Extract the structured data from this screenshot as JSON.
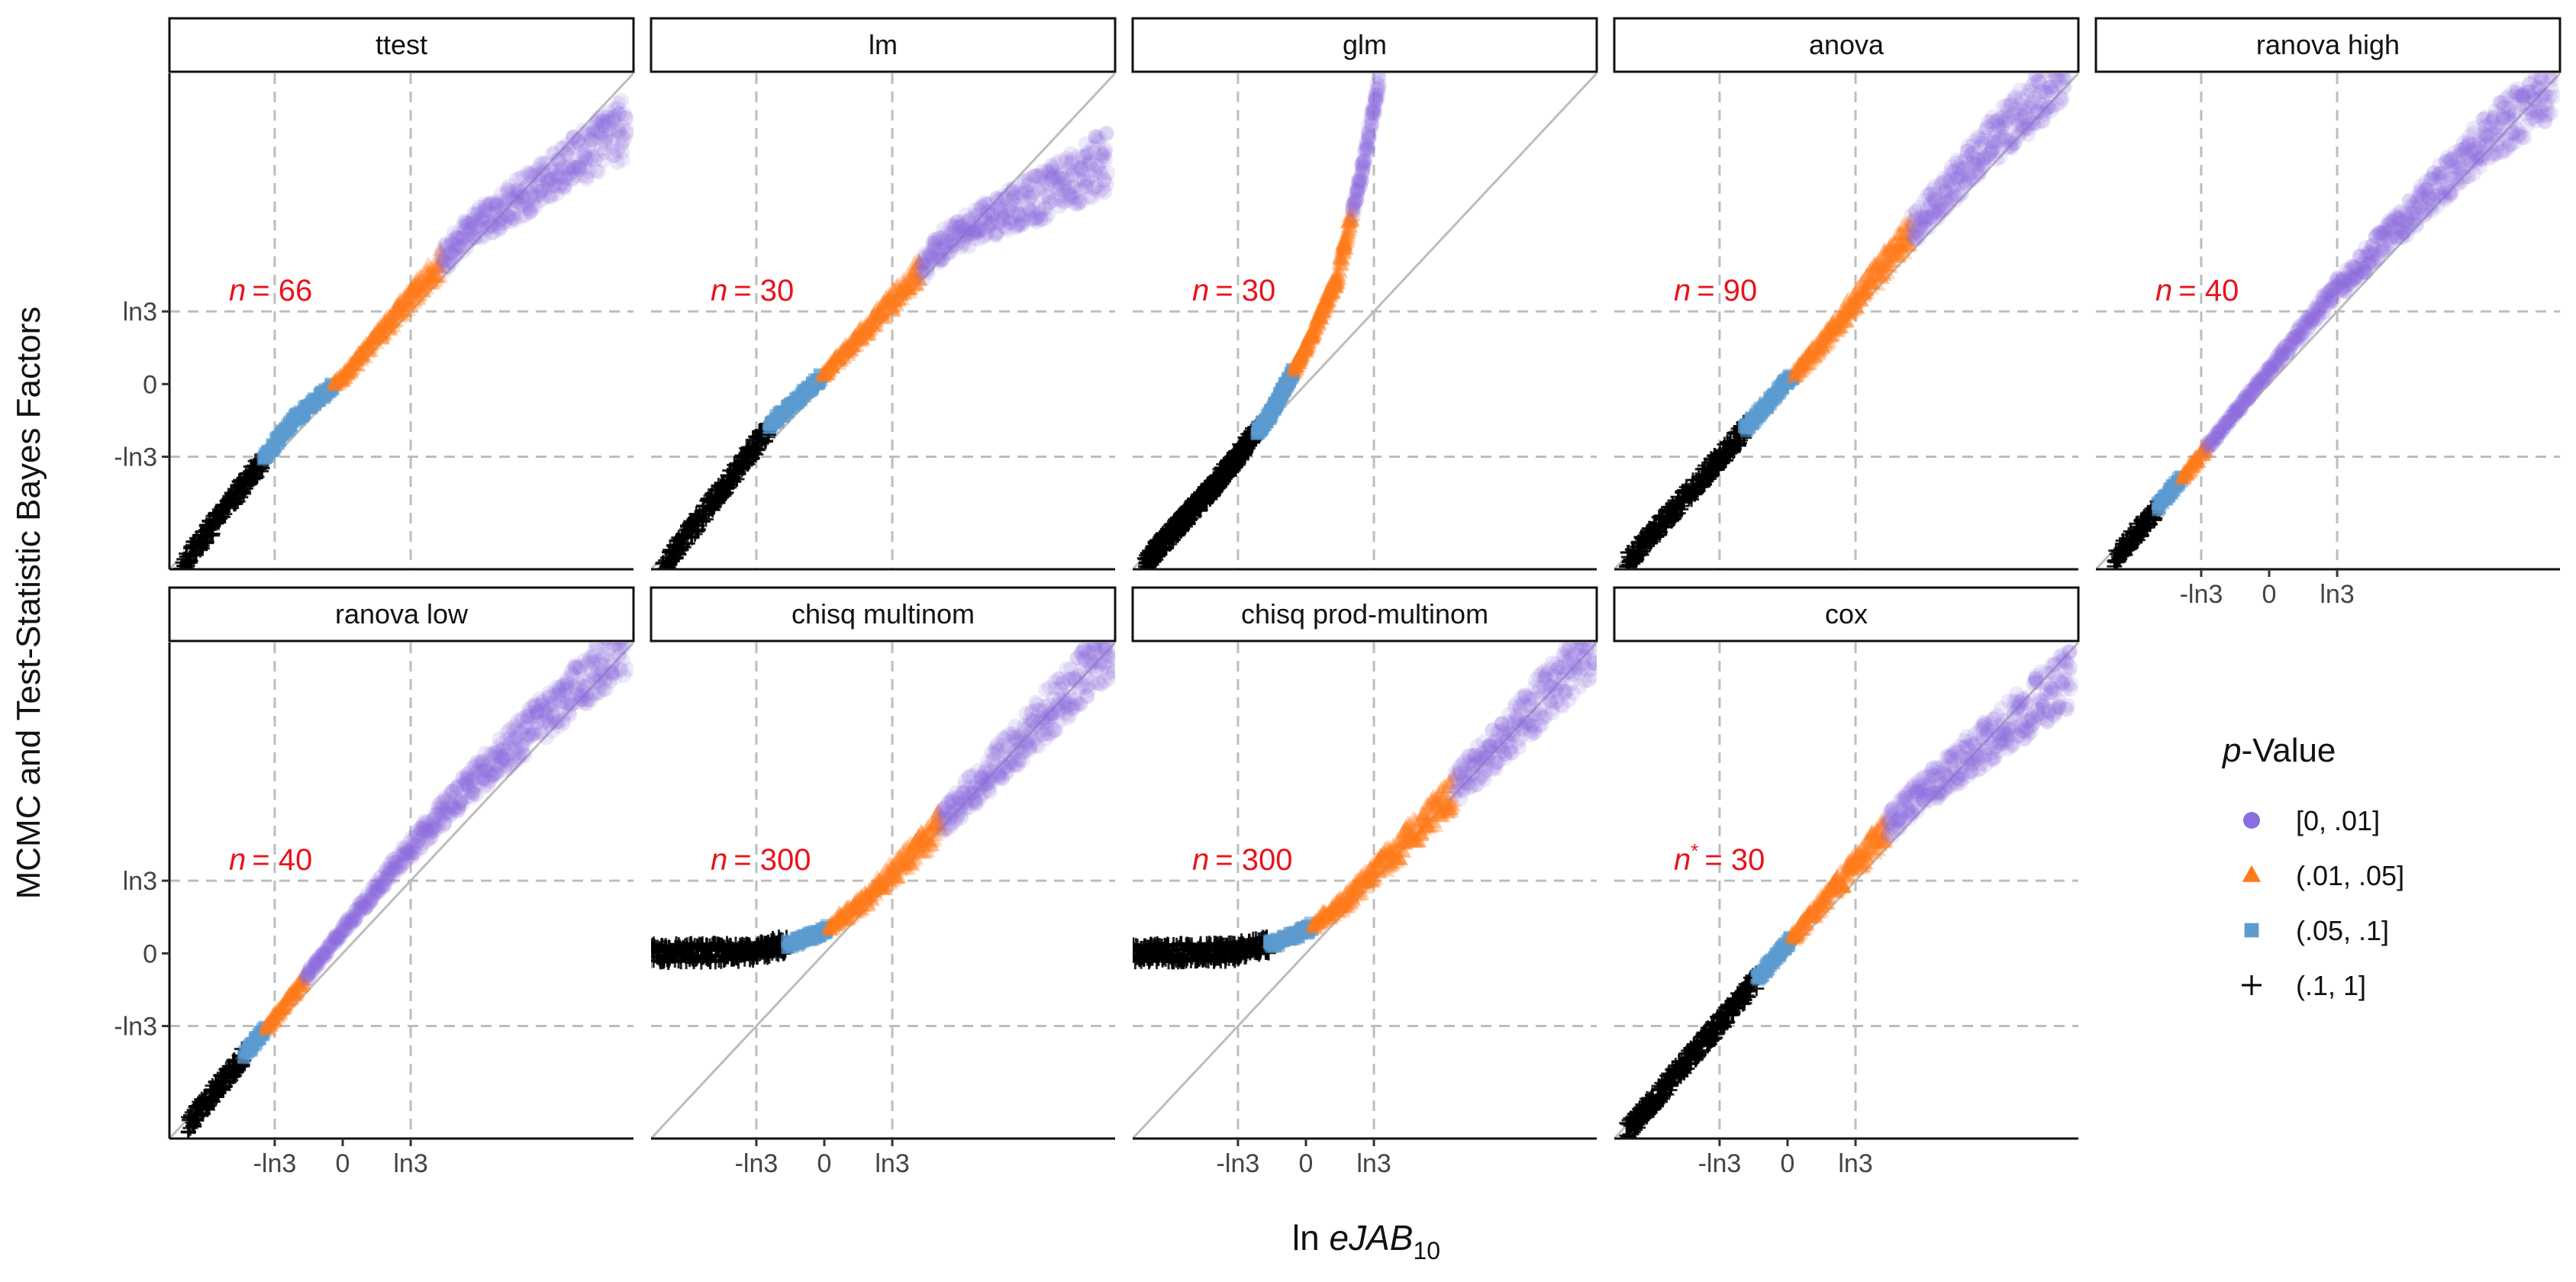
{
  "chart_data": {
    "type": "scatter",
    "xlabel_prefix": "ln ",
    "xlabel_italic": "eJAB",
    "xlabel_sub": "10",
    "ylabel": "MCMC and Test-Statistic Bayes Factors",
    "x_ticks": [
      "-ln3",
      "0",
      "ln3"
    ],
    "y_ticks": [
      "ln3",
      "0",
      "-ln3"
    ],
    "reference_lines": [
      "y = x",
      "x = -ln3",
      "x = ln3",
      "y = -ln3",
      "y = ln3"
    ],
    "axis_range": {
      "x": [
        -2.8,
        4.7
      ],
      "y": [
        -2.8,
        4.7
      ]
    },
    "legend": {
      "title_italic": "p",
      "title_rest": "-Value",
      "position": "right",
      "items": [
        {
          "label": "[0, .01]",
          "shape": "circle",
          "color": "#8a6de0"
        },
        {
          "label": "(.01, .05]",
          "shape": "triangle",
          "color": "#ff7a1a"
        },
        {
          "label": "(.05, .1]",
          "shape": "square",
          "color": "#5b9bd0"
        },
        {
          "label": "(.1, 1]",
          "shape": "plus",
          "color": "#000000"
        }
      ]
    },
    "panels": [
      {
        "title": "ttest",
        "n_label": "n",
        "n_star": "",
        "n_value": "= 66",
        "curve": [
          [
            -2.6,
            -2.75
          ],
          [
            -0.8,
            -0.55
          ],
          [
            0,
            0.1
          ],
          [
            1.0,
            1.2
          ],
          [
            2.0,
            2.3
          ],
          [
            3.5,
            3.2
          ],
          [
            4.6,
            3.9
          ]
        ],
        "breaks": [
          -1.3,
          -0.15,
          0.5,
          1.6
        ]
      },
      {
        "title": "lm",
        "n_label": "n",
        "n_star": "",
        "n_value": "= 30",
        "curve": [
          [
            -2.6,
            -2.75
          ],
          [
            -0.8,
            -0.55
          ],
          [
            0,
            0.15
          ],
          [
            1.0,
            1.15
          ],
          [
            2.0,
            2.2
          ],
          [
            3.5,
            2.85
          ],
          [
            4.6,
            3.4
          ]
        ],
        "breaks": [
          -0.9,
          -0.05,
          0.4,
          1.55
        ]
      },
      {
        "title": "glm",
        "n_label": "n",
        "n_star": "",
        "n_value": "= 30",
        "curve": [
          [
            -2.6,
            -2.7
          ],
          [
            -1.5,
            -1.55
          ],
          [
            -0.6,
            -0.5
          ],
          [
            0,
            0.55
          ],
          [
            0.5,
            1.6
          ],
          [
            0.9,
            3.2
          ],
          [
            1.2,
            4.7
          ]
        ],
        "breaks": [
          -0.8,
          -0.2,
          0.05,
          0.75
        ]
      },
      {
        "title": "anova",
        "n_label": "n",
        "n_star": "",
        "n_value": "= 90",
        "curve": [
          [
            -2.6,
            -2.7
          ],
          [
            -1.5,
            -1.55
          ],
          [
            0,
            0.05
          ],
          [
            0.5,
            0.55
          ],
          [
            1.8,
            2.1
          ],
          [
            3.2,
            3.6
          ],
          [
            4.5,
            4.7
          ]
        ],
        "breaks": [
          -0.7,
          0.1,
          0.75,
          2.0
        ]
      },
      {
        "title": "ranova high",
        "n_label": "n",
        "n_star": "",
        "n_value": "= 40",
        "curve": [
          [
            -2.5,
            -2.65
          ],
          [
            -1.0,
            -0.95
          ],
          [
            0,
            0.2
          ],
          [
            1.0,
            1.35
          ],
          [
            2.0,
            2.3
          ],
          [
            3.5,
            3.7
          ],
          [
            4.6,
            4.5
          ]
        ],
        "breaks": [
          -1.8,
          -1.4,
          -1.1,
          -1.0
        ]
      },
      {
        "title": "ranova low",
        "n_label": "n",
        "n_star": "",
        "n_value": "= 40",
        "curve": [
          [
            -2.5,
            -2.6
          ],
          [
            -1.0,
            -0.85
          ],
          [
            0,
            0.35
          ],
          [
            1.0,
            1.5
          ],
          [
            2.0,
            2.5
          ],
          [
            3.5,
            3.8
          ],
          [
            4.6,
            4.7
          ]
        ],
        "breaks": [
          -1.6,
          -1.25,
          -1.0,
          -0.6
        ]
      },
      {
        "title": "chisq multinom",
        "n_label": "n",
        "n_star": "",
        "n_value": "= 300",
        "curve": [
          [
            -2.8,
            0.0
          ],
          [
            -1.2,
            0.02
          ],
          [
            -0.5,
            0.15
          ],
          [
            0,
            0.35
          ],
          [
            0.6,
            0.75
          ],
          [
            1.5,
            1.6
          ],
          [
            4.7,
            4.7
          ]
        ],
        "breaks": [
          -0.6,
          0.05,
          0.6,
          1.9
        ]
      },
      {
        "title": "chisq prod-multinom",
        "n_label": "n",
        "n_star": "",
        "n_value": "= 300",
        "curve": [
          [
            -2.8,
            0.0
          ],
          [
            -1.2,
            0.02
          ],
          [
            -0.5,
            0.15
          ],
          [
            0,
            0.35
          ],
          [
            0.6,
            0.75
          ],
          [
            1.5,
            1.6
          ],
          [
            4.7,
            4.7
          ]
        ],
        "breaks": [
          -0.6,
          0.1,
          0.8,
          2.4
        ]
      },
      {
        "title": "cox",
        "n_label": "n",
        "n_star": "*",
        "n_value": "= 30",
        "curve": [
          [
            -2.6,
            -2.7
          ],
          [
            -1.0,
            -0.95
          ],
          [
            0,
            0.15
          ],
          [
            1.0,
            1.25
          ],
          [
            2.0,
            2.3
          ],
          [
            3.5,
            3.4
          ],
          [
            4.6,
            4.2
          ]
        ],
        "breaks": [
          -0.5,
          0.05,
          0.6,
          1.6
        ]
      }
    ]
  }
}
